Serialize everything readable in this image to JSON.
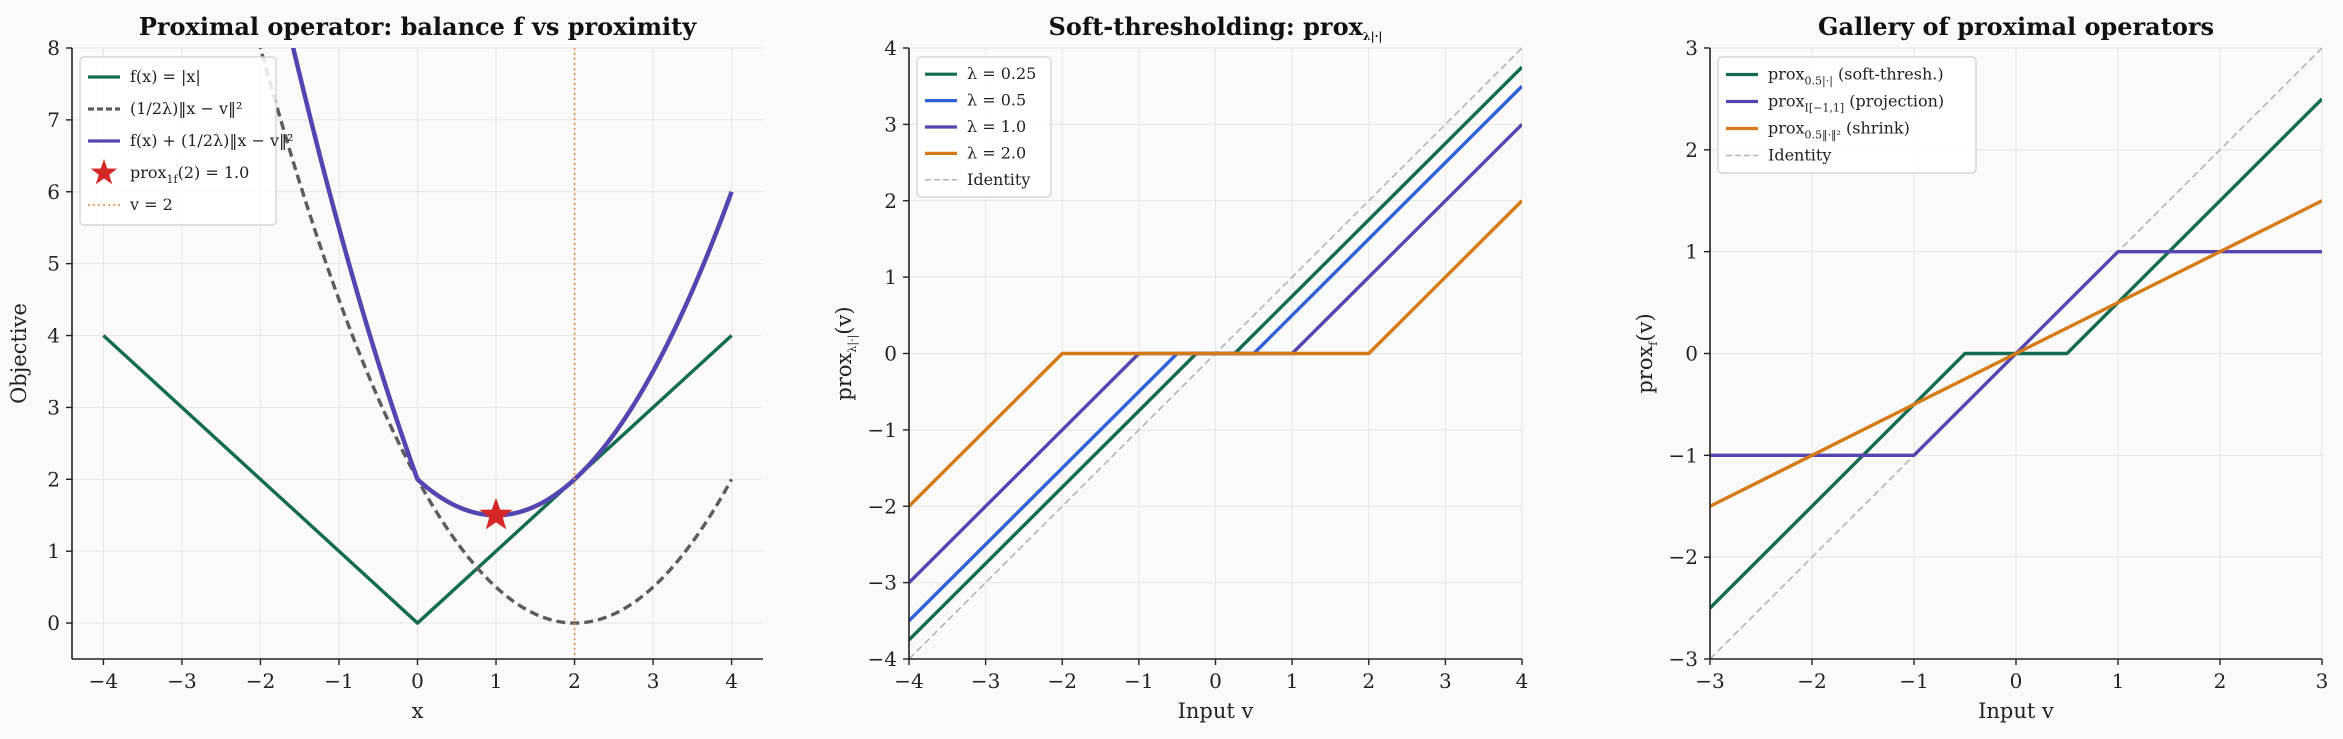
{
  "chart_data": [
    {
      "type": "line",
      "title": "Proximal operator: balance f vs proximity",
      "xlabel": "x",
      "ylabel": "Objective",
      "xlim": [
        -4.4,
        4.4
      ],
      "ylim": [
        -0.5,
        8
      ],
      "xticks": [
        -4,
        -3,
        -2,
        -1,
        0,
        1,
        2,
        3,
        4
      ],
      "yticks": [
        0,
        1,
        2,
        3,
        4,
        5,
        6,
        7,
        8
      ],
      "grid": true,
      "legend_position": "top-left",
      "v": 2,
      "lambda": 1,
      "series": [
        {
          "name": "f(x) = |x|",
          "color": "#136b50",
          "style": "solid",
          "kind": "abs"
        },
        {
          "name": "(1/2λ)‖x − v‖²",
          "color": "#5c5c5c",
          "style": "dashed",
          "kind": "quad"
        },
        {
          "name": "f(x) + (1/2λ)‖x − v‖²",
          "color": "#5346b0",
          "style": "solid",
          "kind": "sum"
        },
        {
          "name": "prox_{1f}(2) = 1.0",
          "color": "#d62728",
          "style": "marker",
          "kind": "star",
          "point": [
            1.0,
            1.5
          ]
        },
        {
          "name": "v = 2",
          "color": "#e8894a",
          "style": "dotted",
          "kind": "vline",
          "x": 2
        }
      ]
    },
    {
      "type": "line",
      "title": "Soft-thresholding: prox_{λ|·|}",
      "xlabel": "Input v",
      "ylabel": "prox_{λ|·|}(v)",
      "xlim": [
        -4,
        4
      ],
      "ylim": [
        -4,
        4
      ],
      "xticks": [
        -4,
        -3,
        -2,
        -1,
        0,
        1,
        2,
        3,
        4
      ],
      "yticks": [
        -4,
        -3,
        -2,
        -1,
        0,
        1,
        2,
        3,
        4
      ],
      "grid": true,
      "legend_position": "top-left",
      "series": [
        {
          "name": "λ = 0.25",
          "color": "#136b50",
          "style": "solid",
          "kind": "soft",
          "lambda": 0.25
        },
        {
          "name": "λ = 0.5",
          "color": "#2e62d6",
          "style": "solid",
          "kind": "soft",
          "lambda": 0.5
        },
        {
          "name": "λ = 1.0",
          "color": "#5346b0",
          "style": "solid",
          "kind": "soft",
          "lambda": 1.0
        },
        {
          "name": "λ = 2.0",
          "color": "#d67a18",
          "style": "solid",
          "kind": "soft",
          "lambda": 2.0
        },
        {
          "name": "Identity",
          "color": "#b4b4b4",
          "style": "dashed",
          "kind": "identity"
        }
      ]
    },
    {
      "type": "line",
      "title": "Gallery of proximal operators",
      "xlabel": "Input v",
      "ylabel": "prox_f(v)",
      "xlim": [
        -3,
        3
      ],
      "ylim": [
        -3,
        3
      ],
      "xticks": [
        -3,
        -2,
        -1,
        0,
        1,
        2,
        3
      ],
      "yticks": [
        -3,
        -2,
        -1,
        0,
        1,
        2,
        3
      ],
      "grid": true,
      "legend_position": "top-left",
      "series": [
        {
          "name": "prox_{0.5|·|} (soft-thresh.)",
          "color": "#136b50",
          "style": "solid",
          "kind": "soft",
          "lambda": 0.5
        },
        {
          "name": "prox_{I[−1,1]} (projection)",
          "color": "#5346b0",
          "style": "solid",
          "kind": "clip",
          "bounds": [
            -1,
            1
          ]
        },
        {
          "name": "prox_{0.5‖·‖²} (shrink)",
          "color": "#d67a18",
          "style": "solid",
          "kind": "scale",
          "factor": 0.5
        },
        {
          "name": "Identity",
          "color": "#b4b4b4",
          "style": "dashed",
          "kind": "identity"
        }
      ]
    }
  ]
}
